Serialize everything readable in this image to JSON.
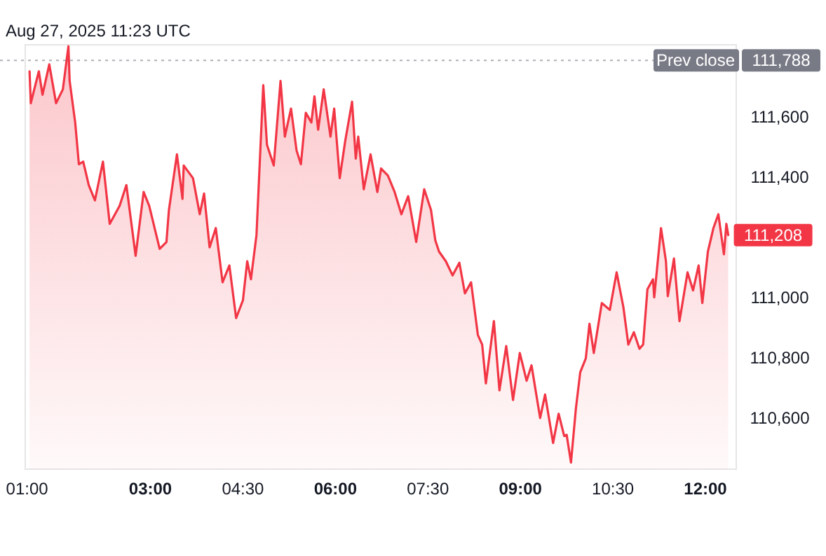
{
  "chart_data": {
    "type": "area",
    "annotations": [
      "Aug 27, 2025 11:23 UTC",
      {
        "text": "111,788",
        "x": 12.5,
        "y": 111788
      },
      {
        "text": "111,208",
        "x": 12.37,
        "y": 111208
      }
    ],
    "xlim": [
      0.97,
      12.5
    ],
    "ylim": [
      110430,
      111840
    ],
    "xticks": [
      {
        "value": 1,
        "label": "01:00"
      },
      {
        "value": 3,
        "label": "03:00"
      },
      {
        "value": 4.5,
        "label": "04:30"
      },
      {
        "value": 6,
        "label": "06:00"
      },
      {
        "value": 7.5,
        "label": "07:30"
      },
      {
        "value": 9,
        "label": "09:00"
      },
      {
        "value": 10.5,
        "label": "10:30"
      },
      {
        "value": 12,
        "label": "12:00"
      }
    ],
    "yticks": [
      {
        "value": 110600,
        "label": "110,600"
      },
      {
        "value": 110800,
        "label": "110,800"
      },
      {
        "value": 111000,
        "label": "111,000"
      },
      {
        "value": 111400,
        "label": "111,400"
      },
      {
        "value": 111600,
        "label": "111,600"
      }
    ],
    "grid": false,
    "line_style": "solid",
    "ref_lines": [
      {
        "axis": "y",
        "value": 111788,
        "label": "Prev close",
        "color": "#787b86",
        "line_style": "dotted"
      }
    ],
    "series": [
      {
        "color": "#f23645",
        "x": [
          1.04,
          1.06,
          1.19,
          1.25,
          1.36,
          1.47,
          1.58,
          1.67,
          1.69,
          1.78,
          1.84,
          1.91,
          2.0,
          2.1,
          2.23,
          2.34,
          2.5,
          2.61,
          2.76,
          2.89,
          2.98,
          3.15,
          3.26,
          3.3,
          3.43,
          3.52,
          3.54,
          3.69,
          3.8,
          3.87,
          3.96,
          4.06,
          4.17,
          4.28,
          4.39,
          4.5,
          4.57,
          4.63,
          4.72,
          4.83,
          4.89,
          5.0,
          5.11,
          5.18,
          5.28,
          5.37,
          5.44,
          5.52,
          5.61,
          5.66,
          5.72,
          5.81,
          5.92,
          5.98,
          6.07,
          6.16,
          6.27,
          6.33,
          6.37,
          6.46,
          6.57,
          6.68,
          6.74,
          6.85,
          6.96,
          7.07,
          7.18,
          7.31,
          7.44,
          7.55,
          7.62,
          7.68,
          7.79,
          7.9,
          8.01,
          8.1,
          8.2,
          8.31,
          8.38,
          8.44,
          8.57,
          8.66,
          8.77,
          8.88,
          8.99,
          9.1,
          9.18,
          9.32,
          9.4,
          9.53,
          9.62,
          9.71,
          9.75,
          9.82,
          9.9,
          9.97,
          10.06,
          10.12,
          10.19,
          10.32,
          10.45,
          10.56,
          10.67,
          10.75,
          10.84,
          10.93,
          10.99,
          11.06,
          11.15,
          11.17,
          11.28,
          11.36,
          11.39,
          11.49,
          11.58,
          11.71,
          11.8,
          11.89,
          11.95,
          12.04,
          12.13,
          12.21,
          12.3,
          12.34,
          12.37
        ],
        "values": [
          111752,
          111646,
          111752,
          111674,
          111775,
          111646,
          111692,
          111835,
          111720,
          111582,
          111443,
          111452,
          111374,
          111323,
          111452,
          111245,
          111305,
          111374,
          111139,
          111351,
          111305,
          111162,
          111185,
          111291,
          111476,
          111328,
          111439,
          111397,
          111277,
          111346,
          111167,
          111231,
          111051,
          111107,
          110932,
          110991,
          111121,
          111061,
          111208,
          111706,
          111508,
          111439,
          111720,
          111535,
          111628,
          111489,
          111443,
          111614,
          111582,
          111669,
          111558,
          111692,
          111535,
          111628,
          111397,
          111522,
          111651,
          111462,
          111535,
          111360,
          111476,
          111351,
          111429,
          111406,
          111351,
          111277,
          111337,
          111185,
          111360,
          111291,
          111190,
          111153,
          111121,
          111074,
          111116,
          111014,
          111051,
          110876,
          110844,
          110715,
          110922,
          110692,
          110839,
          110660,
          110816,
          110724,
          110775,
          110600,
          110678,
          110517,
          110614,
          110540,
          110544,
          110452,
          110632,
          110752,
          110798,
          110913,
          110816,
          110982,
          110959,
          111084,
          110968,
          110844,
          110885,
          110830,
          110844,
          111028,
          111061,
          111001,
          111231,
          111121,
          111005,
          111130,
          110922,
          111084,
          111024,
          111107,
          110982,
          111153,
          111231,
          111277,
          111144,
          111245,
          111208
        ]
      }
    ]
  }
}
